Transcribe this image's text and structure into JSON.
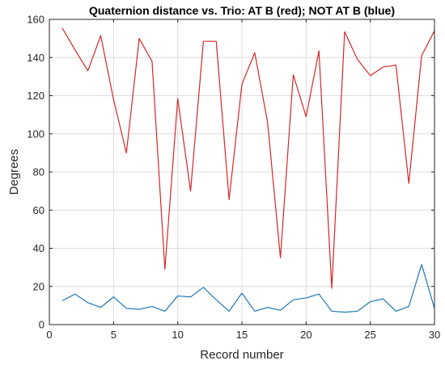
{
  "chart_data": {
    "type": "line",
    "title": "Quaternion distance vs. Trio: AT B (red); NOT AT B (blue)",
    "xlabel": "Record number",
    "ylabel": "Degrees",
    "xlim": [
      0,
      30
    ],
    "ylim": [
      0,
      160
    ],
    "xticks": [
      0,
      5,
      10,
      15,
      20,
      25,
      30
    ],
    "yticks": [
      0,
      20,
      40,
      60,
      80,
      100,
      120,
      140,
      160
    ],
    "grid": true,
    "x": [
      1,
      2,
      3,
      4,
      5,
      6,
      7,
      8,
      9,
      10,
      11,
      12,
      13,
      14,
      15,
      16,
      17,
      18,
      19,
      20,
      21,
      22,
      23,
      24,
      25,
      26,
      27,
      28,
      29,
      30
    ],
    "series": [
      {
        "color": "#d62728",
        "values": [
          155.5,
          144,
          133,
          151.5,
          118,
          90,
          150,
          138,
          29,
          118.5,
          70,
          148.5,
          148.5,
          65.5,
          126,
          142.5,
          106,
          35,
          131,
          109,
          143.5,
          19,
          153.5,
          139,
          130.5,
          135,
          136,
          74,
          141,
          154
        ]
      },
      {
        "color": "#1f77b4",
        "values": [
          12.5,
          16,
          11.5,
          9,
          14.5,
          8.5,
          8,
          9.5,
          7,
          15,
          14.5,
          19.5,
          13,
          7,
          16.5,
          7,
          9,
          7.5,
          13,
          14,
          16,
          7,
          6.5,
          7,
          12,
          13.5,
          7,
          9.5,
          31.5,
          8.5
        ]
      }
    ]
  }
}
